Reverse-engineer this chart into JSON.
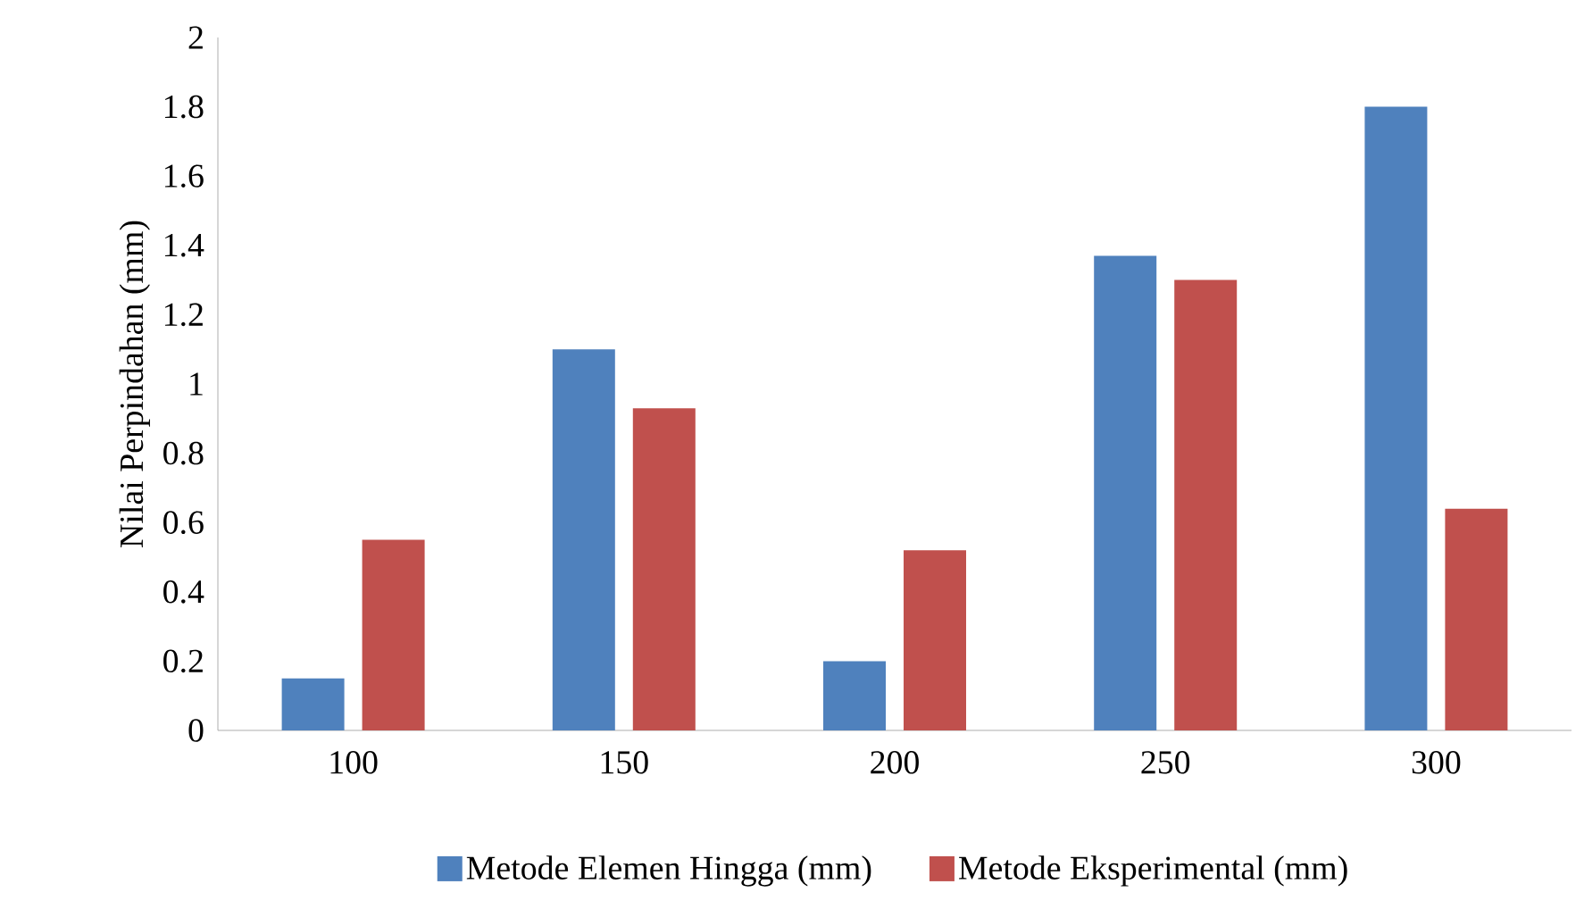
{
  "chart_data": {
    "type": "bar",
    "ylabel": "Nilai Perpindahan (mm)",
    "categories": [
      "100",
      "150",
      "200",
      "250",
      "300"
    ],
    "series": [
      {
        "name": "Metode Elemen Hingga (mm)",
        "color": "#4f81bd",
        "values": [
          0.15,
          1.1,
          0.2,
          1.37,
          1.8
        ]
      },
      {
        "name": "Metode Eksperimental (mm)",
        "color": "#c0504d",
        "values": [
          0.55,
          0.93,
          0.52,
          1.3,
          0.64
        ]
      }
    ],
    "ylim": [
      0,
      2
    ],
    "yticks": [
      0,
      0.2,
      0.4,
      0.6,
      0.8,
      1,
      1.2,
      1.4,
      1.6,
      1.8,
      2
    ],
    "legend": "bottom"
  }
}
